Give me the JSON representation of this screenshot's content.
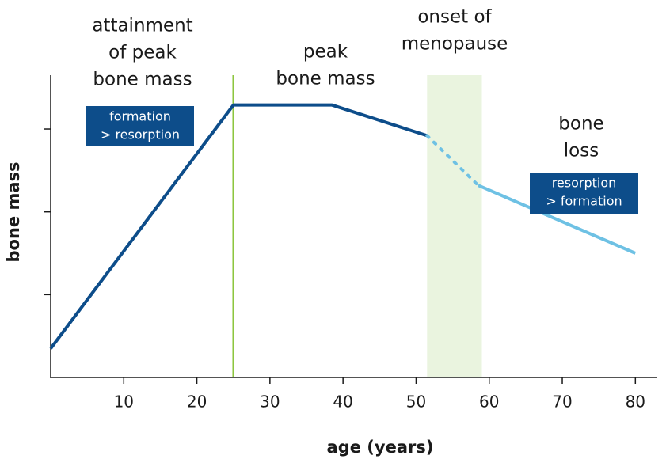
{
  "chart_data": {
    "type": "line",
    "xlabel": "age (years)",
    "ylabel": "bone mass",
    "xlim": [
      0,
      83
    ],
    "xticks": [
      10,
      20,
      30,
      40,
      50,
      60,
      70,
      80
    ],
    "ylim": [
      0,
      3.65
    ],
    "yticks": [
      1,
      2,
      3
    ],
    "series": [
      {
        "color": "#0d4d8a",
        "dashed": false,
        "x": [
          0,
          25,
          38.5,
          51.5
        ],
        "values": [
          0.35,
          3.29,
          3.29,
          2.92
        ]
      },
      {
        "color": "#6ec1e4",
        "dashed": true,
        "x": [
          51.5,
          58.5
        ],
        "values": [
          2.92,
          2.32
        ]
      },
      {
        "color": "#6ec1e4",
        "dashed": false,
        "x": [
          58.5,
          80
        ],
        "values": [
          2.32,
          1.5
        ]
      }
    ],
    "vline": {
      "x": 25,
      "color": "#8dc63f"
    },
    "band": {
      "x": [
        51.5,
        59
      ],
      "color": "#eaf4df"
    },
    "annotations": [
      {
        "lines": [
          "attainment",
          "of peak",
          "bone mass"
        ]
      },
      {
        "lines": [
          "peak",
          "bone mass"
        ]
      },
      {
        "lines": [
          "onset of",
          "menopause"
        ]
      },
      {
        "lines": [
          "bone",
          "loss"
        ]
      }
    ],
    "boxes": [
      {
        "color": "#0d4d8a",
        "lines": [
          "formation",
          "> resorption"
        ]
      },
      {
        "color": "#0d4d8a",
        "lines": [
          "resorption",
          "> formation"
        ]
      }
    ]
  }
}
